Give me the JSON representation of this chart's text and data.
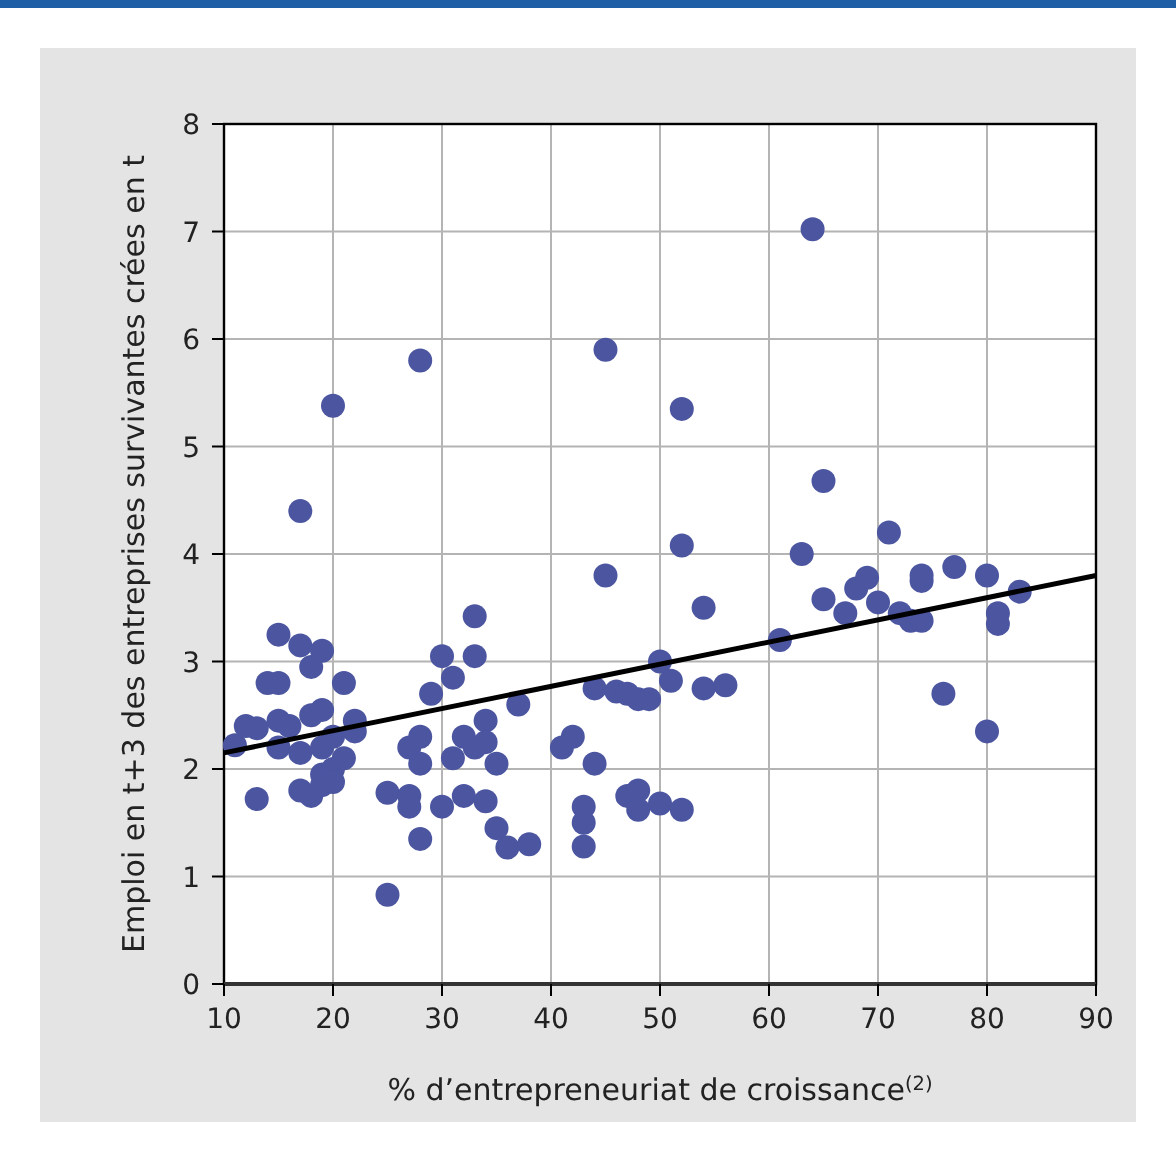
{
  "chart_data": {
    "type": "scatter",
    "xlabel": "% d’entrepreneuriat de croissance$^{(2)}$",
    "ylabel": "Emploi en t+3 des entreprises survivantes crées en t",
    "xlim": [
      10,
      90
    ],
    "ylim": [
      0,
      8
    ],
    "xticks": [
      10,
      20,
      30,
      40,
      50,
      60,
      70,
      80,
      90
    ],
    "yticks": [
      0,
      1,
      2,
      3,
      4,
      5,
      6,
      7,
      8
    ],
    "grid": true,
    "marker": "circle",
    "series": [
      {
        "color": "#4b55a0",
        "x": [
          11,
          12,
          13,
          13,
          14,
          15,
          15,
          15,
          15,
          16,
          17,
          17,
          17,
          17,
          18,
          18,
          18,
          19,
          19,
          19,
          19,
          19,
          20,
          20,
          20,
          20,
          21,
          21,
          22,
          22,
          25,
          25,
          27,
          27,
          27,
          28,
          28,
          28,
          28,
          29,
          30,
          30,
          31,
          31,
          32,
          32,
          33,
          33,
          33,
          34,
          34,
          34,
          35,
          35,
          36,
          37,
          38,
          41,
          42,
          43,
          43,
          43,
          44,
          44,
          45,
          45,
          46,
          47,
          47,
          48,
          48,
          48,
          49,
          50,
          50,
          51,
          52,
          52,
          52,
          54,
          54,
          56,
          61,
          63,
          64,
          65,
          65,
          67,
          68,
          69,
          70,
          71,
          72,
          73,
          74,
          74,
          74,
          76,
          77,
          80,
          80,
          81,
          81,
          83
        ],
        "values": [
          2.22,
          2.4,
          2.38,
          1.72,
          2.8,
          2.8,
          3.25,
          2.45,
          2.2,
          2.4,
          4.4,
          3.15,
          2.15,
          1.8,
          2.95,
          2.5,
          1.75,
          3.1,
          2.55,
          2.2,
          1.95,
          1.85,
          5.38,
          2.3,
          2.0,
          1.88,
          2.8,
          2.1,
          2.45,
          2.35,
          1.78,
          0.83,
          2.2,
          1.75,
          1.65,
          5.8,
          2.3,
          2.05,
          1.35,
          2.7,
          3.05,
          1.65,
          2.85,
          2.1,
          2.3,
          1.75,
          3.42,
          3.05,
          2.2,
          2.45,
          2.25,
          1.7,
          2.05,
          1.45,
          1.27,
          2.6,
          1.3,
          2.2,
          2.3,
          1.65,
          1.5,
          1.28,
          2.75,
          2.05,
          5.9,
          3.8,
          2.72,
          2.7,
          1.75,
          2.65,
          1.8,
          1.62,
          2.65,
          3.0,
          1.68,
          2.82,
          5.35,
          4.08,
          1.62,
          3.5,
          2.75,
          2.78,
          3.2,
          4.0,
          7.02,
          4.68,
          3.58,
          3.45,
          3.68,
          3.78,
          3.55,
          4.2,
          3.45,
          3.38,
          3.38,
          3.75,
          3.8,
          2.7,
          3.88,
          3.8,
          2.35,
          3.45,
          3.35,
          3.65
        ]
      },
      {
        "type": "line",
        "color": "#000000",
        "marker": "none",
        "x": [
          10,
          90
        ],
        "values": [
          2.15,
          3.8
        ]
      }
    ]
  }
}
